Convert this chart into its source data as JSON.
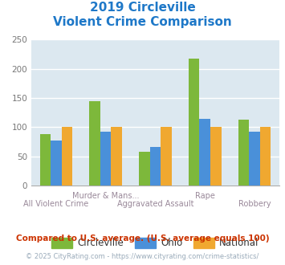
{
  "title_line1": "2019 Circleville",
  "title_line2": "Violent Crime Comparison",
  "title_color": "#1e78c8",
  "categories": [
    "All Violent Crime",
    "Murder & Mans...",
    "Aggravated Assault",
    "Rape",
    "Robbery"
  ],
  "xtick_top": [
    "",
    "Murder & Mans...",
    "",
    "Rape",
    ""
  ],
  "xtick_bottom": [
    "All Violent Crime",
    "",
    "Aggravated Assault",
    "",
    "Robbery"
  ],
  "circleville": [
    88,
    145,
    58,
    218,
    113
  ],
  "ohio": [
    77,
    92,
    66,
    115,
    92
  ],
  "national": [
    100,
    100,
    100,
    100,
    100
  ],
  "color_circleville": "#7db83b",
  "color_ohio": "#4a90d9",
  "color_national": "#f0a830",
  "ylim": [
    0,
    250
  ],
  "yticks": [
    0,
    50,
    100,
    150,
    200,
    250
  ],
  "legend_labels": [
    "Circleville",
    "Ohio",
    "National"
  ],
  "note": "Compared to U.S. average. (U.S. average equals 100)",
  "note_color": "#cc3300",
  "copyright": "© 2025 CityRating.com - https://www.cityrating.com/crime-statistics/",
  "copyright_color": "#9aabba",
  "link_color": "#4a90d9",
  "bg_color": "#dce8f0",
  "fig_bg": "#ffffff",
  "grid_color": "#ffffff",
  "bar_width": 0.22
}
